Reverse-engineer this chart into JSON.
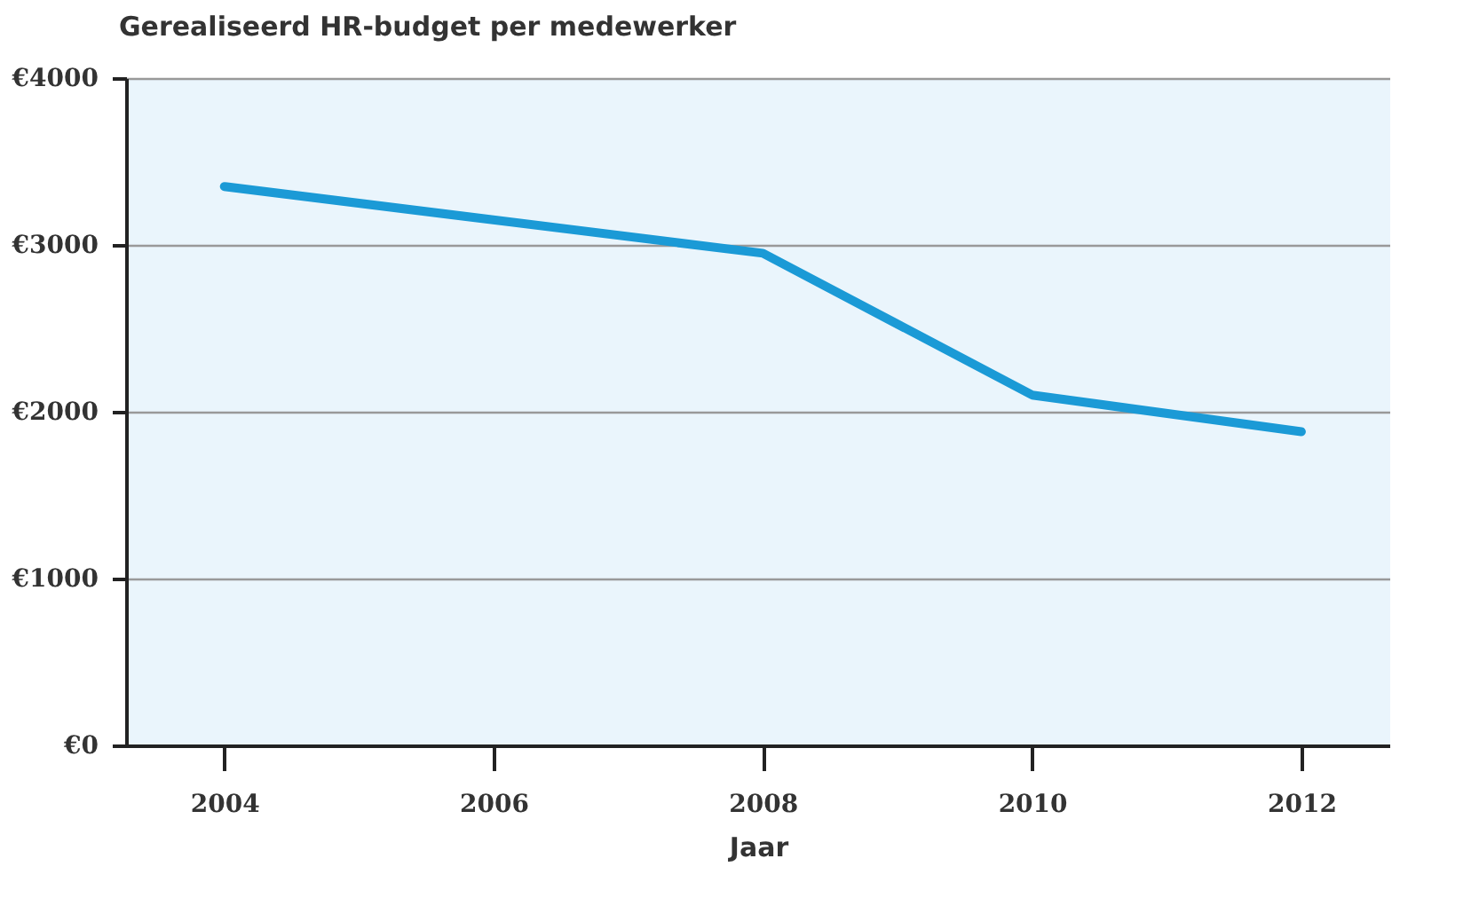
{
  "chart_data": {
    "type": "line",
    "title": "Gerealiseerd HR-budget per medewerker",
    "xlabel": "Jaar",
    "x": [
      2004,
      2008,
      2010,
      2012
    ],
    "series": [
      {
        "color": "#1b9ad6",
        "values": [
          3350,
          2950,
          2100,
          1880
        ]
      }
    ],
    "xlim": [
      2003.27,
      2012.66
    ],
    "xticks": [
      2004,
      2006,
      2008,
      2010,
      2012
    ],
    "ylim": [
      0,
      4000
    ],
    "yticks": [
      {
        "value": 0,
        "label": "€0"
      },
      {
        "value": 1000,
        "label": "€1000"
      },
      {
        "value": 2000,
        "label": "€2000"
      },
      {
        "value": 3000,
        "label": "€3000"
      },
      {
        "value": 4000,
        "label": "€4000"
      }
    ],
    "grid": "y",
    "marker": "none",
    "line_style": "solid",
    "legend": false
  }
}
